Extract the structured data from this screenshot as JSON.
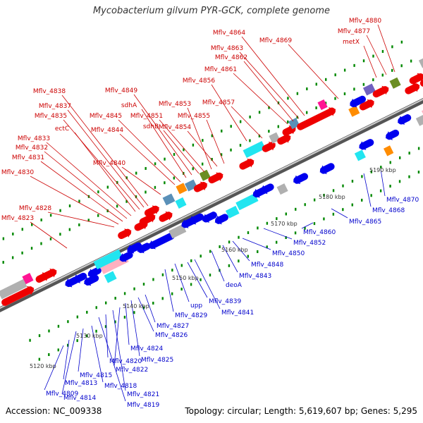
{
  "title": "Mycobacterium gilvum PYR-GCK, complete genome",
  "accession": "Accession: NC_009338",
  "topology": "Topology: circular; Length: 5,619,607 bp; Genes: 5,295",
  "colors": {
    "forward_label": "#cc0000",
    "reverse_label": "#0000cc",
    "forward_gene": "#ee0000",
    "reverse_gene": "#0000ee",
    "backbone": "#777777",
    "tick": "#008800"
  },
  "kbp_labels": [
    "5120 kbp",
    "5130 kbp",
    "5140 kbp",
    "5150 kbp",
    "5160 kbp",
    "5170 kbp",
    "5180 kbp",
    "5190 kbp"
  ],
  "forward_labels": [
    "Mflv_4823",
    "Mflv_4828",
    "Mflv_4830",
    "Mflv_4831",
    "Mflv_4832",
    "Mflv_4833",
    "ectC",
    "Mflv_4835",
    "Mflv_4837",
    "Mflv_4838",
    "Mflv_4840",
    "Mflv_4844",
    "Mflv_4845",
    "sdhA",
    "Mflv_4849",
    "sdhB",
    "Mflv_4851",
    "Mflv_4853",
    "Mflv_4854",
    "Mflv_4855",
    "Mflv_4856",
    "Mflv_4857",
    "Mflv_4861",
    "Mflv_4862",
    "Mflv_4863",
    "Mflv_4864",
    "Mflv_4869",
    "metX",
    "Mflv_4877",
    "Mflv_4880"
  ],
  "reverse_labels": [
    "Mflv_4809",
    "Mflv_4813",
    "Mflv_4814",
    "Mflv_4815",
    "Mflv_4818",
    "Mflv_4819",
    "Mflv_4820",
    "Mflv_4821",
    "Mflv_4822",
    "Mflv_4824",
    "Mflv_4825",
    "Mflv_4826",
    "Mflv_4827",
    "upp",
    "Mflv_4829",
    "Mflv_4839",
    "Mflv_4841",
    "deoA",
    "Mflv_4843",
    "Mflv_4848",
    "Mflv_4850",
    "Mflv_4852",
    "Mflv_4860",
    "Mflv_4865",
    "Mflv_4868",
    "Mflv_4870"
  ]
}
